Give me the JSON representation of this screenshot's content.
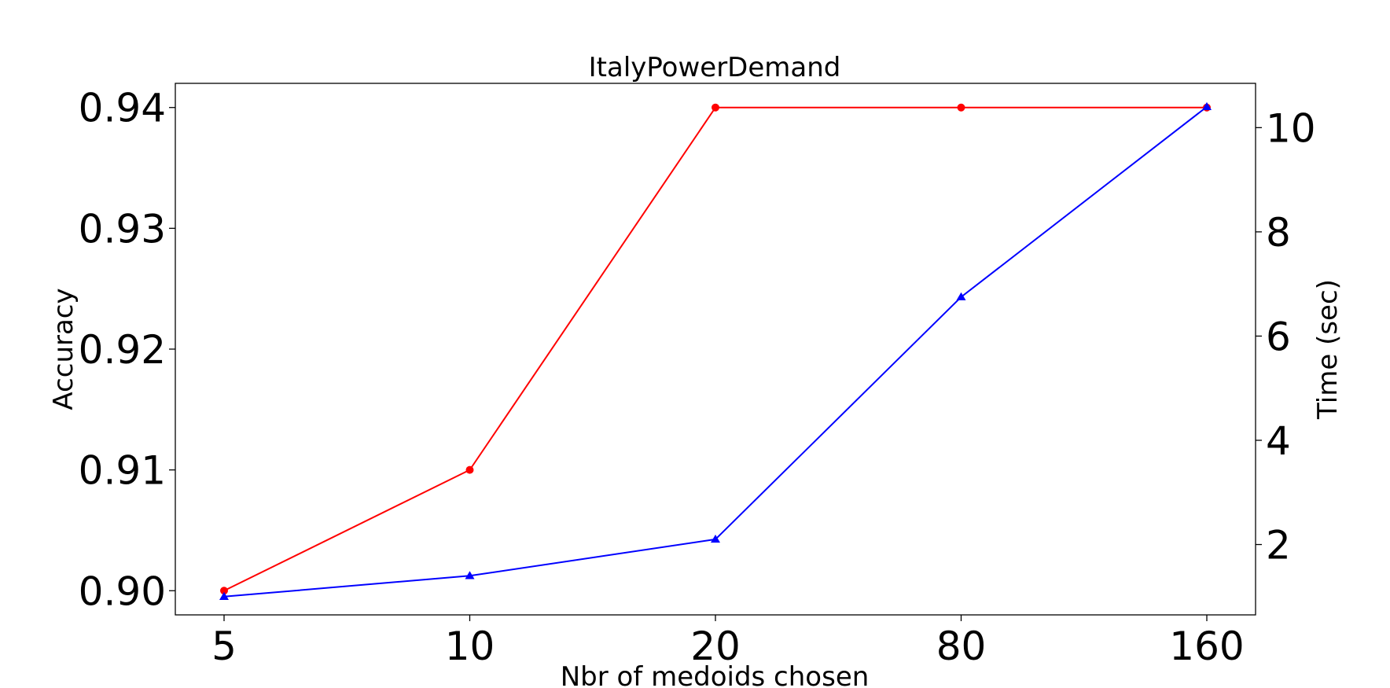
{
  "chart_data": {
    "type": "line",
    "title": "ItalyPowerDemand",
    "xlabel": "Nbr of medoids chosen",
    "ylabel": "Accuracy",
    "y2label": "Time (sec)",
    "categories": [
      "5",
      "10",
      "20",
      "80",
      "160"
    ],
    "ylim": [
      0.898,
      0.942
    ],
    "y2lim": [
      0.65,
      10.85
    ],
    "yticks": [
      "0.90",
      "0.91",
      "0.92",
      "0.93",
      "0.94"
    ],
    "y2ticks": [
      "2",
      "4",
      "6",
      "8",
      "10"
    ],
    "grid": false,
    "series": [
      {
        "axis": "left",
        "marker": "circle",
        "color": "#ff0000",
        "values": [
          0.9,
          0.91,
          0.94,
          0.94,
          0.94
        ]
      },
      {
        "axis": "right",
        "marker": "triangle",
        "color": "#0000ff",
        "values": [
          1.0,
          1.4,
          2.1,
          6.75,
          10.4
        ]
      }
    ]
  }
}
